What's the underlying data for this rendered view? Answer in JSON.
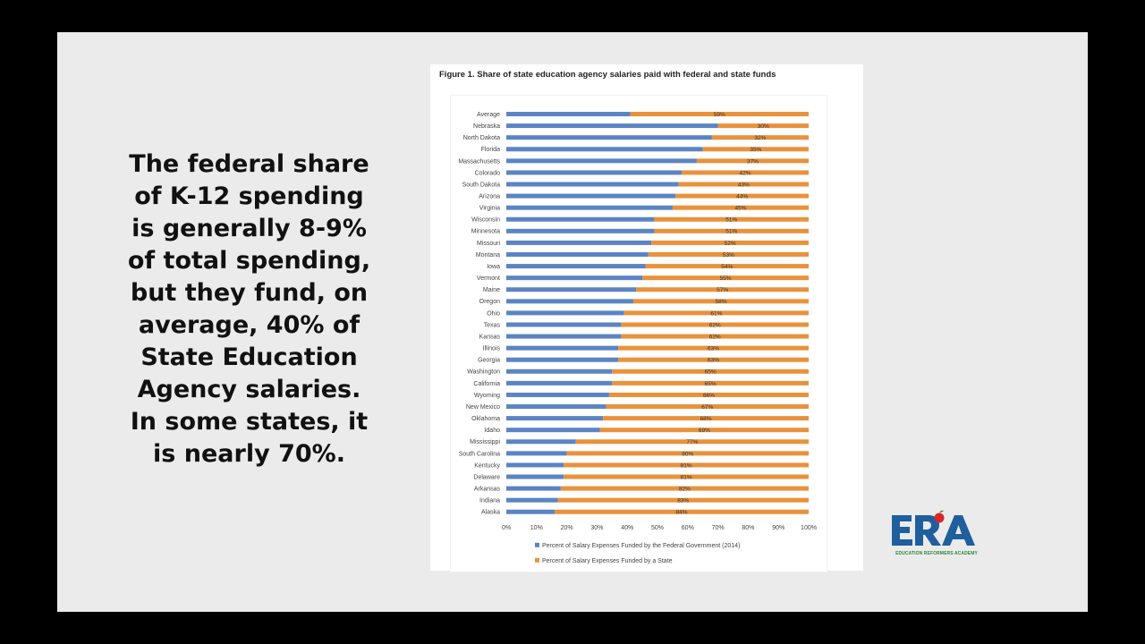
{
  "slide": {
    "body_text": "The federal share of K-12 spending is  generally 8-9% of total spending, but they fund, on average, 40% of State Education Agency salaries. In some states, it is nearly 70%."
  },
  "logo": {
    "text": "ERA",
    "tagline": "EDUCATION REFORMERS ACADEMY"
  },
  "chart_data": {
    "type": "bar",
    "stacked": true,
    "orientation": "horizontal",
    "title": "Figure 1. Share of state education agency salaries paid with federal and state funds",
    "categories": [
      "Average",
      "Nebraska",
      "North Dakota",
      "Florida",
      "Massachusetts",
      "Colorado",
      "South Dakota",
      "Arizona",
      "Virginia",
      "Wisconsin",
      "Minnesota",
      "Missouri",
      "Montana",
      "Iowa",
      "Vermont",
      "Maine",
      "Oregon",
      "Ohio",
      "Texas",
      "Kansas",
      "Illinois",
      "Georgia",
      "Washington",
      "California",
      "Wyoming",
      "New Mexico",
      "Oklahoma",
      "Idaho",
      "Mississippi",
      "South Carolina",
      "Kentucky",
      "Delaware",
      "Arkansas",
      "Indiana",
      "Alaska"
    ],
    "series": [
      {
        "name": "Percent of Salary Expenses Funded by the Federal Government (2014)",
        "color": "#5b84c4",
        "values": [
          41,
          70,
          68,
          65,
          63,
          58,
          57,
          56,
          55,
          49,
          49,
          48,
          47,
          46,
          45,
          43,
          42,
          39,
          38,
          38,
          37,
          37,
          35,
          35,
          34,
          33,
          32,
          31,
          23,
          20,
          19,
          19,
          18,
          17,
          16
        ]
      },
      {
        "name": "Percent of Salary Expenses Funded by a State",
        "color": "#e9923b",
        "values": [
          59,
          30,
          32,
          35,
          37,
          42,
          43,
          44,
          45,
          51,
          51,
          52,
          53,
          54,
          55,
          57,
          58,
          61,
          62,
          62,
          63,
          63,
          65,
          65,
          66,
          67,
          68,
          69,
          77,
          80,
          81,
          81,
          82,
          83,
          84
        ]
      }
    ],
    "data_labels": [
      "59%",
      "30%",
      "32%",
      "35%",
      "37%",
      "42%",
      "43%",
      "44%",
      "45%",
      "51%",
      "51%",
      "52%",
      "53%",
      "54%",
      "55%",
      "57%",
      "58%",
      "61%",
      "62%",
      "62%",
      "63%",
      "63%",
      "65%",
      "65%",
      "66%",
      "67%",
      "68%",
      "69%",
      "77%",
      "80%",
      "81%",
      "81%",
      "82%",
      "83%",
      "84%"
    ],
    "xlim": [
      0,
      100
    ],
    "x_ticks": [
      "0%",
      "10%",
      "20%",
      "30%",
      "40%",
      "50%",
      "60%",
      "70%",
      "80%",
      "90%",
      "100%"
    ],
    "legend_position": "bottom"
  }
}
